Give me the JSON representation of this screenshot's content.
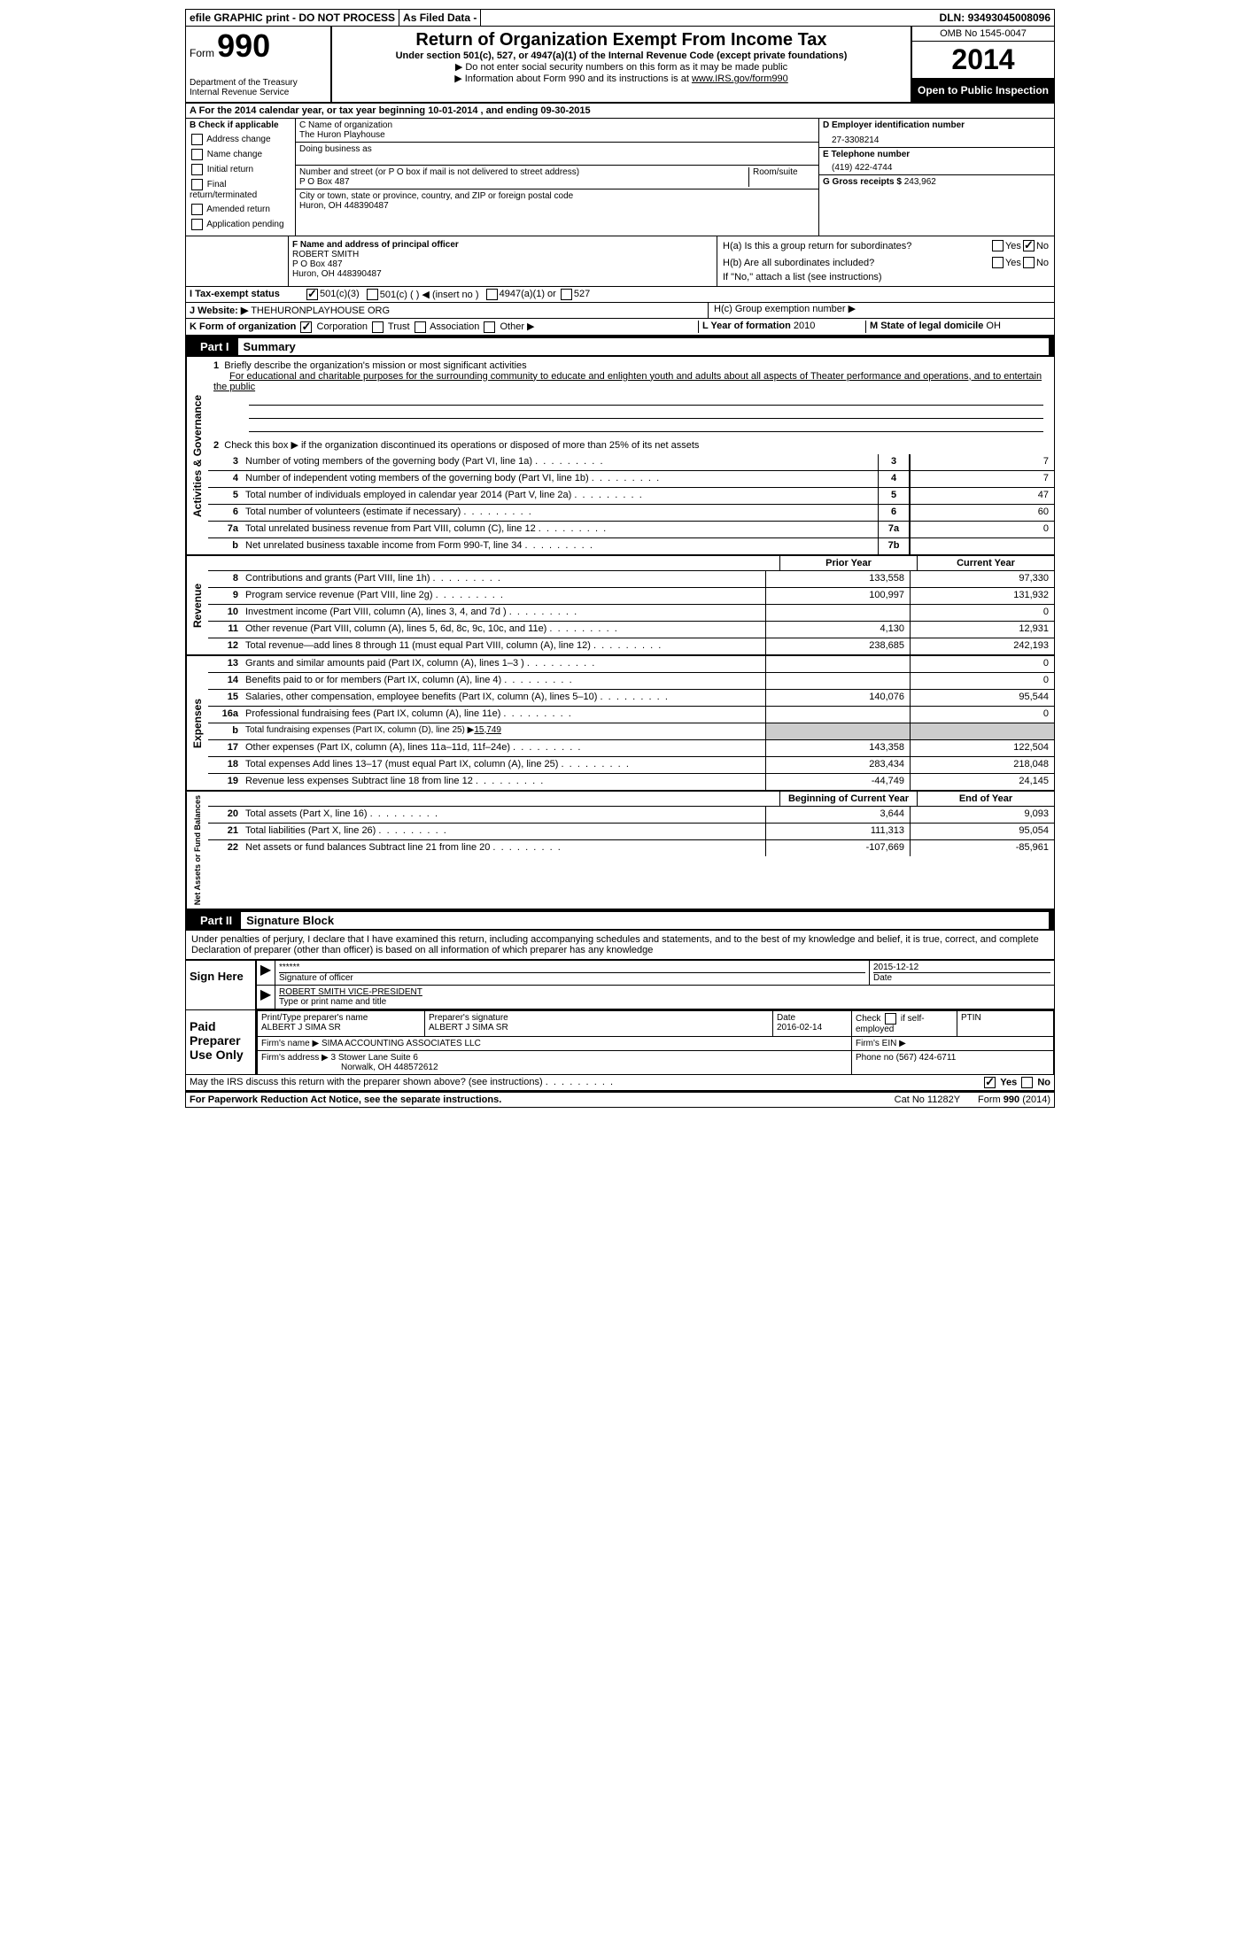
{
  "topbar": {
    "efile": "efile GRAPHIC print - DO NOT PROCESS",
    "asfiled": "As Filed Data -",
    "dln_label": "DLN:",
    "dln": "93493045008096"
  },
  "header": {
    "form_label": "Form",
    "form_num": "990",
    "dept1": "Department of the Treasury",
    "dept2": "Internal Revenue Service",
    "title": "Return of Organization Exempt From Income Tax",
    "sub1": "Under section 501(c), 527, or 4947(a)(1) of the Internal Revenue Code (except private foundations)",
    "sub2": "▶ Do not enter social security numbers on this form as it may be made public",
    "sub3_a": "▶ Information about Form 990 and its instructions is at ",
    "sub3_link": "www.IRS.gov/form990",
    "omb": "OMB No 1545-0047",
    "year": "2014",
    "inspection": "Open to Public Inspection"
  },
  "sectionA": "A For the 2014 calendar year, or tax year beginning 10-01-2014    , and ending 09-30-2015",
  "B": {
    "label": "B  Check if applicable",
    "items": [
      "Address change",
      "Name change",
      "Initial return",
      "Final return/terminated",
      "Amended return",
      "Application pending"
    ]
  },
  "C": {
    "label": "C Name of organization",
    "name": "The Huron Playhouse",
    "dba_label": "Doing business as",
    "street_label": "Number and street (or P O  box if mail is not delivered to street address)",
    "room_label": "Room/suite",
    "street": "P O Box 487",
    "city_label": "City or town, state or province, country, and ZIP or foreign postal code",
    "city": "Huron, OH  448390487"
  },
  "D": {
    "label": "D Employer identification number",
    "value": "27-3308214"
  },
  "E": {
    "label": "E Telephone number",
    "value": "(419) 422-4744"
  },
  "G": {
    "label": "G Gross receipts $",
    "value": "243,962"
  },
  "F": {
    "label": "F  Name and address of principal officer",
    "line1": "ROBERT SMITH",
    "line2": "P O Box 487",
    "line3": "Huron, OH  448390487"
  },
  "H": {
    "ha": "H(a)  Is this a group return for subordinates?",
    "hb": "H(b)  Are all subordinates included?",
    "hb_note": "If \"No,\" attach a list  (see instructions)",
    "hc": "H(c)  Group exemption number ▶",
    "yes": "Yes",
    "no": "No"
  },
  "I": {
    "label": "I  Tax-exempt status",
    "opt1": "501(c)(3)",
    "opt2": "501(c) (   ) ◀ (insert no )",
    "opt3": "4947(a)(1) or",
    "opt4": "527"
  },
  "J": {
    "label": "J  Website: ▶",
    "value": "THEHURONPLAYHOUSE ORG"
  },
  "K": {
    "label": "K Form of organization",
    "opts": [
      "Corporation",
      "Trust",
      "Association",
      "Other ▶"
    ]
  },
  "L": {
    "label": "L Year of formation",
    "value": "2010"
  },
  "M": {
    "label": "M State of legal domicile",
    "value": "OH"
  },
  "part1": {
    "header": "Part I",
    "title": "Summary",
    "vlabel_gov": "Activities & Governance",
    "vlabel_rev": "Revenue",
    "vlabel_exp": "Expenses",
    "vlabel_net": "Net Assets or Fund Balances",
    "line1": "Briefly describe the organization's mission or most significant activities",
    "mission": "For educational and charitable purposes for the surrounding community to educate and enlighten youth and adults about all aspects of Theater performance and operations, and to entertain the public",
    "line2": "Check this box ▶       if the organization discontinued its operations or disposed of more than 25% of its net assets",
    "lines": [
      {
        "n": "3",
        "t": "Number of voting members of the governing body (Part VI, line 1a)",
        "box": "3",
        "v": "7"
      },
      {
        "n": "4",
        "t": "Number of independent voting members of the governing body (Part VI, line 1b)",
        "box": "4",
        "v": "7"
      },
      {
        "n": "5",
        "t": "Total number of individuals employed in calendar year 2014 (Part V, line 2a)",
        "box": "5",
        "v": "47"
      },
      {
        "n": "6",
        "t": "Total number of volunteers (estimate if necessary)",
        "box": "6",
        "v": "60"
      },
      {
        "n": "7a",
        "t": "Total unrelated business revenue from Part VIII, column (C), line 12",
        "box": "7a",
        "v": "0"
      },
      {
        "n": "b",
        "t": "Net unrelated business taxable income from Form 990-T, line 34",
        "box": "7b",
        "v": ""
      }
    ],
    "col_prior": "Prior Year",
    "col_current": "Current Year",
    "revenue": [
      {
        "n": "8",
        "t": "Contributions and grants (Part VIII, line 1h)",
        "p": "133,558",
        "c": "97,330"
      },
      {
        "n": "9",
        "t": "Program service revenue (Part VIII, line 2g)",
        "p": "100,997",
        "c": "131,932"
      },
      {
        "n": "10",
        "t": "Investment income (Part VIII, column (A), lines 3, 4, and 7d )",
        "p": "",
        "c": "0"
      },
      {
        "n": "11",
        "t": "Other revenue (Part VIII, column (A), lines 5, 6d, 8c, 9c, 10c, and 11e)",
        "p": "4,130",
        "c": "12,931"
      },
      {
        "n": "12",
        "t": "Total revenue—add lines 8 through 11 (must equal Part VIII, column (A), line 12)",
        "p": "238,685",
        "c": "242,193"
      }
    ],
    "expenses": [
      {
        "n": "13",
        "t": "Grants and similar amounts paid (Part IX, column (A), lines 1–3 )",
        "p": "",
        "c": "0"
      },
      {
        "n": "14",
        "t": "Benefits paid to or for members (Part IX, column (A), line 4)",
        "p": "",
        "c": "0"
      },
      {
        "n": "15",
        "t": "Salaries, other compensation, employee benefits (Part IX, column (A), lines 5–10)",
        "p": "140,076",
        "c": "95,544"
      },
      {
        "n": "16a",
        "t": "Professional fundraising fees (Part IX, column (A), line 11e)",
        "p": "",
        "c": "0"
      },
      {
        "n": "b",
        "t": "Total fundraising expenses (Part IX, column (D), line 25) ▶",
        "sp": "15,749",
        "shaded": true
      },
      {
        "n": "17",
        "t": "Other expenses (Part IX, column (A), lines 11a–11d, 11f–24e)",
        "p": "143,358",
        "c": "122,504"
      },
      {
        "n": "18",
        "t": "Total expenses  Add lines 13–17 (must equal Part IX, column (A), line 25)",
        "p": "283,434",
        "c": "218,048"
      },
      {
        "n": "19",
        "t": "Revenue less expenses  Subtract line 18 from line 12",
        "p": "-44,749",
        "c": "24,145"
      }
    ],
    "col_begin": "Beginning of Current Year",
    "col_end": "End of Year",
    "net": [
      {
        "n": "20",
        "t": "Total assets (Part X, line 16)",
        "p": "3,644",
        "c": "9,093"
      },
      {
        "n": "21",
        "t": "Total liabilities (Part X, line 26)",
        "p": "111,313",
        "c": "95,054"
      },
      {
        "n": "22",
        "t": "Net assets or fund balances  Subtract line 21 from line 20",
        "p": "-107,669",
        "c": "-85,961"
      }
    ]
  },
  "part2": {
    "header": "Part II",
    "title": "Signature Block",
    "declaration": "Under penalties of perjury, I declare that I have examined this return, including accompanying schedules and statements, and to the best of my knowledge and belief, it is true, correct, and complete  Declaration of preparer (other than officer) is based on all information of which preparer has any knowledge"
  },
  "sign": {
    "label": "Sign Here",
    "stars": "******",
    "sig_label": "Signature of officer",
    "date": "2015-12-12",
    "date_label": "Date",
    "name": "ROBERT SMITH VICE-PRESIDENT",
    "name_label": "Type or print name and title"
  },
  "preparer": {
    "left": "Paid Preparer Use Only",
    "name_label": "Print/Type preparer's name",
    "name": "ALBERT J SIMA SR",
    "sig_label": "Preparer's signature",
    "sig": "ALBERT J SIMA SR",
    "date_label": "Date",
    "date": "2016-02-14",
    "check_label": "Check        if self-employed",
    "ptin_label": "PTIN",
    "firm_name_label": "Firm's name    ▶",
    "firm_name": "SIMA ACCOUNTING ASSOCIATES LLC",
    "firm_ein_label": "Firm's EIN ▶",
    "firm_addr_label": "Firm's address ▶",
    "firm_addr": "3 Stower Lane Suite 6",
    "firm_city": "Norwalk, OH  448572612",
    "phone_label": "Phone no",
    "phone": "(567) 424-6711"
  },
  "discuss": {
    "text": "May the IRS discuss this return with the preparer shown above? (see instructions)",
    "yes": "Yes",
    "no": "No"
  },
  "footer": {
    "left": "For Paperwork Reduction Act Notice, see the separate instructions.",
    "mid": "Cat No 11282Y",
    "right": "Form 990 (2014)"
  }
}
